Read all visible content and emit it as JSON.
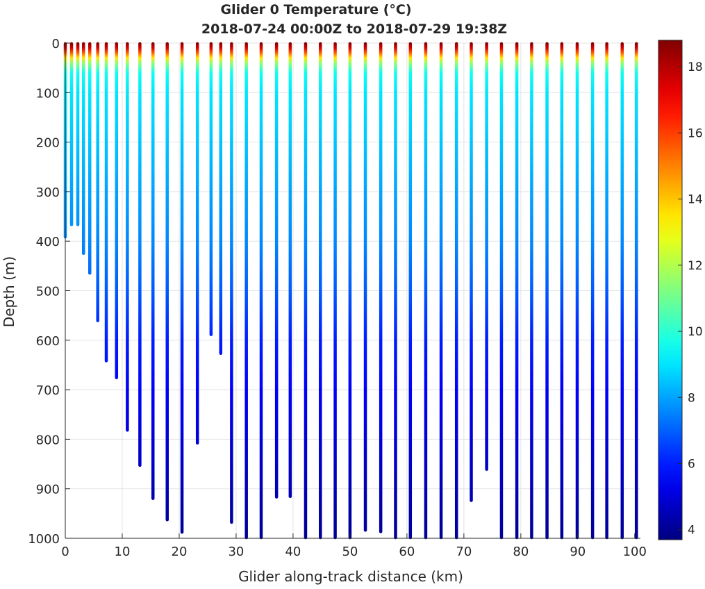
{
  "chart_data": {
    "type": "scatter",
    "title": [
      "Glider 0 Temperature (°C)",
      "2018-07-24 00:00Z to 2018-07-29 19:38Z"
    ],
    "xlabel": "Glider along-track distance (km)",
    "ylabel": "Depth (m)",
    "xlim": [
      0,
      101
    ],
    "ylim": [
      0,
      1000
    ],
    "y_reversed": true,
    "xticks": [
      0,
      10,
      20,
      30,
      40,
      50,
      60,
      70,
      80,
      90,
      100
    ],
    "yticks": [
      0,
      100,
      200,
      300,
      400,
      500,
      600,
      700,
      800,
      900,
      1000
    ],
    "grid": true,
    "colorbar": {
      "colormap": "jet",
      "clim": [
        3.7,
        18.8
      ],
      "ticks": [
        4,
        6,
        8,
        10,
        12,
        14,
        16,
        18
      ]
    },
    "temperature_profile": {
      "depth": [
        0,
        10,
        20,
        30,
        40,
        60,
        100,
        200,
        300,
        400,
        500,
        600,
        700,
        800,
        900,
        1000
      ],
      "temp": [
        18.7,
        17.5,
        15.5,
        13.5,
        11.5,
        9.6,
        9.0,
        8.5,
        8.0,
        7.6,
        6.9,
        6.0,
        5.5,
        5.0,
        4.5,
        4.0
      ]
    },
    "profiles": [
      {
        "distance_km": 0.0,
        "max_depth": 393
      },
      {
        "distance_km": 1.1,
        "max_depth": 368
      },
      {
        "distance_km": 2.2,
        "max_depth": 368
      },
      {
        "distance_km": 3.2,
        "max_depth": 426
      },
      {
        "distance_km": 4.3,
        "max_depth": 466
      },
      {
        "distance_km": 5.7,
        "max_depth": 562
      },
      {
        "distance_km": 7.2,
        "max_depth": 643
      },
      {
        "distance_km": 9.0,
        "max_depth": 677
      },
      {
        "distance_km": 10.9,
        "max_depth": 783
      },
      {
        "distance_km": 13.1,
        "max_depth": 854
      },
      {
        "distance_km": 15.4,
        "max_depth": 921
      },
      {
        "distance_km": 17.9,
        "max_depth": 964
      },
      {
        "distance_km": 20.5,
        "max_depth": 989
      },
      {
        "distance_km": 23.2,
        "max_depth": 809
      },
      {
        "distance_km": 25.6,
        "max_depth": 590
      },
      {
        "distance_km": 27.3,
        "max_depth": 628
      },
      {
        "distance_km": 29.2,
        "max_depth": 969
      },
      {
        "distance_km": 31.8,
        "max_depth": 1000
      },
      {
        "distance_km": 34.4,
        "max_depth": 1000
      },
      {
        "distance_km": 37.1,
        "max_depth": 918
      },
      {
        "distance_km": 39.5,
        "max_depth": 917
      },
      {
        "distance_km": 42.2,
        "max_depth": 1000
      },
      {
        "distance_km": 44.8,
        "max_depth": 1000
      },
      {
        "distance_km": 47.4,
        "max_depth": 1000
      },
      {
        "distance_km": 50.0,
        "max_depth": 1000
      },
      {
        "distance_km": 52.7,
        "max_depth": 985
      },
      {
        "distance_km": 55.4,
        "max_depth": 988
      },
      {
        "distance_km": 58.0,
        "max_depth": 1000
      },
      {
        "distance_km": 60.6,
        "max_depth": 1000
      },
      {
        "distance_km": 63.3,
        "max_depth": 1000
      },
      {
        "distance_km": 66.0,
        "max_depth": 1000
      },
      {
        "distance_km": 68.7,
        "max_depth": 1000
      },
      {
        "distance_km": 71.3,
        "max_depth": 925
      },
      {
        "distance_km": 74.0,
        "max_depth": 862
      },
      {
        "distance_km": 76.6,
        "max_depth": 1000
      },
      {
        "distance_km": 79.3,
        "max_depth": 1000
      },
      {
        "distance_km": 81.9,
        "max_depth": 1000
      },
      {
        "distance_km": 84.6,
        "max_depth": 1000
      },
      {
        "distance_km": 87.2,
        "max_depth": 1000
      },
      {
        "distance_km": 89.9,
        "max_depth": 1000
      },
      {
        "distance_km": 92.6,
        "max_depth": 1000
      },
      {
        "distance_km": 95.1,
        "max_depth": 1000
      },
      {
        "distance_km": 97.8,
        "max_depth": 1000
      },
      {
        "distance_km": 100.3,
        "max_depth": 1000
      }
    ]
  }
}
